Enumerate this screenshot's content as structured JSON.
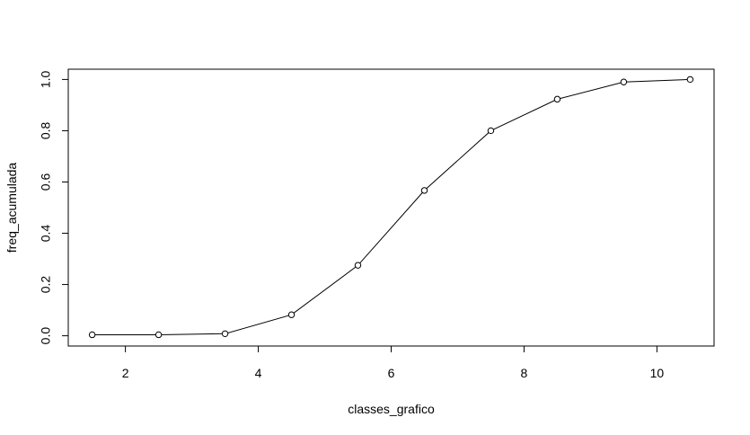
{
  "chart_data": {
    "type": "line",
    "title": "",
    "xlabel": "classes_grafico",
    "ylabel": "freq_acumulada",
    "x": [
      1.5,
      2.5,
      3.5,
      4.5,
      5.5,
      6.5,
      7.5,
      8.5,
      9.5,
      10.5
    ],
    "series": [
      {
        "values": [
          0.004,
          0.004,
          0.008,
          0.082,
          0.275,
          0.567,
          0.8,
          0.923,
          0.99,
          1.0
        ]
      }
    ],
    "xticks": [
      2,
      4,
      6,
      8,
      10
    ],
    "yticks": [
      0.0,
      0.2,
      0.4,
      0.6,
      0.8,
      1.0
    ],
    "xtick_labels": [
      "2",
      "4",
      "6",
      "8",
      "10"
    ],
    "ytick_labels": [
      "0.0",
      "0.2",
      "0.4",
      "0.6",
      "0.8",
      "1.0"
    ],
    "xlim": [
      1.14,
      10.86
    ],
    "ylim": [
      -0.04,
      1.04
    ],
    "grid": false,
    "colors": {
      "line": "#000000",
      "marker": "#000000",
      "background": "#ffffff"
    }
  }
}
